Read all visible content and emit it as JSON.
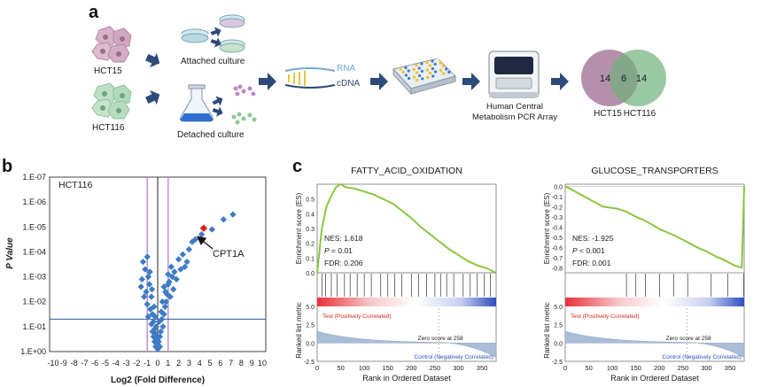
{
  "panel_a": {
    "letter": "a",
    "cell_lines": [
      "HCT15",
      "HCT116"
    ],
    "culture_labels": {
      "attached": "Attached culture",
      "detached": "Detached culture"
    },
    "rna_label": "RNA",
    "cdna_label": "cDNA",
    "pcr_label_line1": "Human Central",
    "pcr_label_line2": "Metabolism PCR Array",
    "venn": {
      "left_count": "14",
      "overlap_count": "6",
      "right_count": "14",
      "left_label": "HCT15",
      "right_label": "HCT116",
      "left_color": "#a87d9f",
      "right_color": "#6fb07a"
    }
  },
  "panel_b": {
    "letter": "b",
    "cell_line": "HCT116",
    "highlight_gene": "CPT1A",
    "point_color": "#3d7cc4",
    "highlight_color": "#d8261d",
    "chart_data": {
      "type": "scatter",
      "title": "HCT116",
      "xlabel": "Log2 (Fold Difference)",
      "ylabel": "P Value",
      "x_ticks": [
        "-10",
        "-9",
        "-8",
        "-7",
        "-6",
        "-5",
        "-4",
        "-3",
        "-2",
        "-1",
        "0",
        "1",
        "2",
        "3",
        "4",
        "5",
        "6",
        "7",
        "8",
        "9",
        "10"
      ],
      "y_ticks": [
        "1.E-07",
        "1.E-06",
        "1.E-05",
        "1.E-04",
        "1.E-03",
        "1.E-02",
        "1.E-01",
        "1.E+00"
      ],
      "xlim": [
        -10,
        10
      ],
      "ylim_log10": [
        0,
        7
      ],
      "fold_cutoff_log2": [
        -1,
        1
      ],
      "pvalue_cutoff": 0.05,
      "points_log2fc_neglog10p": [
        [
          -1.3,
          2.2
        ],
        [
          -1.1,
          2.4
        ],
        [
          -1.5,
          2.9
        ],
        [
          -1.2,
          3.3
        ],
        [
          -0.9,
          3.0
        ],
        [
          -1.4,
          3.6
        ],
        [
          -0.8,
          2.7
        ],
        [
          -0.6,
          2.2
        ],
        [
          -1.0,
          1.9
        ],
        [
          -0.7,
          1.7
        ],
        [
          -0.5,
          1.5
        ],
        [
          -0.9,
          1.4
        ],
        [
          -0.4,
          1.2
        ],
        [
          -0.6,
          1.1
        ],
        [
          -0.3,
          0.9
        ],
        [
          -0.5,
          0.8
        ],
        [
          -0.2,
          0.7
        ],
        [
          -0.4,
          0.6
        ],
        [
          -0.1,
          0.5
        ],
        [
          -0.3,
          0.4
        ],
        [
          0.1,
          0.4
        ],
        [
          0.2,
          0.6
        ],
        [
          0.3,
          0.8
        ],
        [
          0.5,
          1.0
        ],
        [
          0.4,
          1.3
        ],
        [
          0.6,
          1.5
        ],
        [
          0.7,
          1.8
        ],
        [
          0.8,
          2.0
        ],
        [
          0.9,
          2.3
        ],
        [
          0.6,
          2.6
        ],
        [
          1.1,
          2.8
        ],
        [
          1.0,
          3.1
        ],
        [
          1.3,
          3.4
        ],
        [
          1.6,
          3.2
        ],
        [
          2.0,
          3.7
        ],
        [
          2.4,
          3.9
        ],
        [
          2.8,
          3.6
        ],
        [
          3.0,
          4.1
        ],
        [
          3.3,
          4.4
        ],
        [
          2.2,
          3.3
        ],
        [
          1.8,
          2.9
        ],
        [
          1.5,
          2.5
        ],
        [
          1.2,
          2.2
        ],
        [
          4.2,
          4.7
        ],
        [
          5.2,
          4.9
        ],
        [
          6.3,
          5.3
        ],
        [
          7.2,
          5.5
        ],
        [
          -0.2,
          0.2
        ],
        [
          0.0,
          0.1
        ],
        [
          -0.1,
          0.3
        ],
        [
          0.2,
          0.2
        ],
        [
          0.1,
          0.15
        ],
        [
          -0.15,
          1.0
        ],
        [
          0.15,
          1.2
        ],
        [
          0.35,
          1.6
        ],
        [
          -0.35,
          1.8
        ],
        [
          -0.25,
          1.4
        ],
        [
          0.45,
          2.0
        ],
        [
          -0.55,
          2.5
        ],
        [
          0.75,
          2.4
        ],
        [
          -0.75,
          3.2
        ],
        [
          1.0,
          2.7
        ],
        [
          -1.0,
          3.8
        ],
        [
          1.4,
          3.0
        ],
        [
          -1.6,
          2.6
        ],
        [
          2.6,
          3.4
        ],
        [
          3.6,
          4.5
        ]
      ],
      "highlight_point": {
        "gene": "CPT1A",
        "log2fc": 4.4,
        "neglog10p": 4.95
      }
    }
  },
  "panel_c": {
    "letter": "c",
    "gsea": [
      {
        "title": "FATTY_ACID_OXIDATION",
        "nes": "NES: 1.618",
        "p_prefix": "P",
        "p_value": "= 0.01",
        "fdr": "FDR: 0.206",
        "es_ylabel": "Enrichment score (ES)",
        "rank_ylabel": "Ranked list metric",
        "es_ticks": [
          "0.0",
          "0.1",
          "0.2",
          "0.3",
          "0.4",
          "0.5"
        ],
        "rank_ticks": [
          "5.0",
          "2.5",
          "0.0",
          "-2.5"
        ],
        "x_ticks": [
          "0",
          "50",
          "100",
          "150",
          "200",
          "250",
          "300",
          "350"
        ],
        "xlabel": "Rank in Ordered Dataset",
        "positive_label": "Test (Positively Correlated)",
        "negative_label": "Control (Negatively Correlated)",
        "zero_label": "Zero score at 258",
        "chart_data": {
          "type": "line",
          "title": "FATTY_ACID_OXIDATION",
          "xlabel": "Rank in Ordered Dataset",
          "ylabel": "Enrichment score (ES)",
          "xlim": [
            0,
            380
          ],
          "ylim": [
            0,
            0.6
          ],
          "series": [
            {
              "name": "ES",
              "x": [
                0,
                10,
                20,
                30,
                40,
                50,
                60,
                80,
                100,
                120,
                140,
                160,
                180,
                200,
                220,
                240,
                260,
                280,
                300,
                320,
                340,
                360,
                380
              ],
              "values": [
                0.0,
                0.3,
                0.45,
                0.52,
                0.58,
                0.6,
                0.58,
                0.57,
                0.55,
                0.53,
                0.5,
                0.47,
                0.42,
                0.37,
                0.31,
                0.26,
                0.21,
                0.16,
                0.12,
                0.08,
                0.05,
                0.03,
                0.0
              ]
            }
          ],
          "hit_ranks": [
            10,
            18,
            30,
            42,
            58,
            70,
            85,
            100,
            115,
            135,
            150,
            165,
            180,
            200,
            215,
            232,
            250,
            262,
            275,
            290,
            310,
            325,
            340,
            355,
            368
          ],
          "zero_cross_rank": 258,
          "rank_metric_range": [
            5.0,
            -2.5
          ]
        }
      },
      {
        "title": "GLUCOSE_TRANSPORTERS",
        "nes": "NES: -1.925",
        "p_prefix": "P",
        "p_value": "< 0.001",
        "fdr": "FDR: 0.001",
        "es_ylabel": "Enrichment score (ES)",
        "rank_ylabel": "Ranked list metric",
        "es_ticks": [
          "0.0",
          "-0.1",
          "-0.2",
          "-0.3",
          "-0.4",
          "-0.5",
          "-0.6",
          "-0.7",
          "-0.8"
        ],
        "rank_ticks": [
          "5.0",
          "2.5",
          "0.0",
          "-2.5"
        ],
        "x_ticks": [
          "0",
          "50",
          "100",
          "150",
          "200",
          "250",
          "300",
          "350"
        ],
        "xlabel": "Rank in Ordered Dataset",
        "positive_label": "Test (Positively Correlated)",
        "negative_label": "Control (Negatively Correlated)",
        "zero_label": "Zero score at 258",
        "chart_data": {
          "type": "line",
          "title": "GLUCOSE_TRANSPORTERS",
          "xlabel": "Rank in Ordered Dataset",
          "ylabel": "Enrichment score (ES)",
          "xlim": [
            0,
            380
          ],
          "ylim": [
            -0.85,
            0.02
          ],
          "series": [
            {
              "name": "ES",
              "x": [
                0,
                40,
                80,
                110,
                130,
                150,
                170,
                200,
                230,
                260,
                280,
                300,
                320,
                340,
                360,
                375,
                380
              ],
              "values": [
                0.0,
                -0.1,
                -0.2,
                -0.22,
                -0.25,
                -0.3,
                -0.34,
                -0.42,
                -0.48,
                -0.55,
                -0.6,
                -0.64,
                -0.69,
                -0.73,
                -0.78,
                -0.8,
                0.0
              ]
            }
          ],
          "hit_ranks": [
            130,
            150,
            170,
            200,
            230,
            260,
            310,
            345,
            379
          ],
          "zero_cross_rank": 258,
          "rank_metric_range": [
            5.0,
            -2.5
          ]
        }
      }
    ]
  }
}
